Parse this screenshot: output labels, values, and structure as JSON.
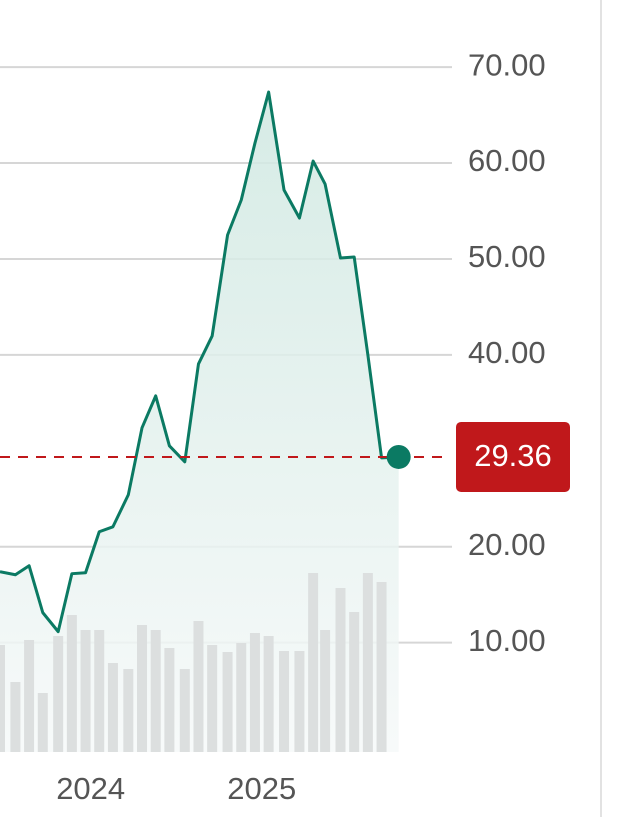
{
  "chart_data": {
    "type": "line",
    "x": [
      2023.47,
      2023.56,
      2023.64,
      2023.72,
      2023.81,
      2023.89,
      2023.97,
      2024.05,
      2024.13,
      2024.22,
      2024.3,
      2024.38,
      2024.46,
      2024.55,
      2024.63,
      2024.71,
      2024.8,
      2024.88,
      2024.96,
      2025.04,
      2025.13,
      2025.22,
      2025.3,
      2025.37,
      2025.46,
      2025.54,
      2025.62,
      2025.7,
      2025.8
    ],
    "series": [
      {
        "color": "#0b7a63",
        "values": [
          17.4,
          17.08,
          18.02,
          13.13,
          11.15,
          17.19,
          17.29,
          21.56,
          22.08,
          25.42,
          32.4,
          35.73,
          30.52,
          28.85,
          39.06,
          41.98,
          52.5,
          56.15,
          62.08,
          67.4,
          57.19,
          54.27,
          60.21,
          57.81,
          50.1,
          50.21,
          40.0,
          29.27,
          29.36
        ]
      },
      {
        "type": "bar",
        "axis": "y2",
        "color": "#dcdfdf",
        "values": [
          107,
          70,
          112,
          59,
          116,
          137,
          122,
          122,
          89,
          83,
          127,
          122,
          104,
          83,
          131,
          107,
          100,
          109,
          119,
          116,
          101,
          101,
          179,
          122,
          164,
          140,
          179,
          170,
          null
        ]
      }
    ],
    "xlim": [
      2023.47,
      2026.1
    ],
    "xticks": [
      2024,
      2025
    ],
    "ylim": [
      -1.4,
      77
    ],
    "yticks": [
      {
        "value": 10,
        "label": "10.00"
      },
      {
        "value": 20,
        "label": "20.00"
      },
      {
        "value": 40,
        "label": "40.00"
      },
      {
        "value": 50,
        "label": "50.00"
      },
      {
        "value": 60,
        "label": "60.00"
      },
      {
        "value": 70,
        "label": "70.00"
      }
    ],
    "y2lim": [
      0,
      752
    ],
    "grid": true,
    "last_value_color": "#c0181b"
  }
}
